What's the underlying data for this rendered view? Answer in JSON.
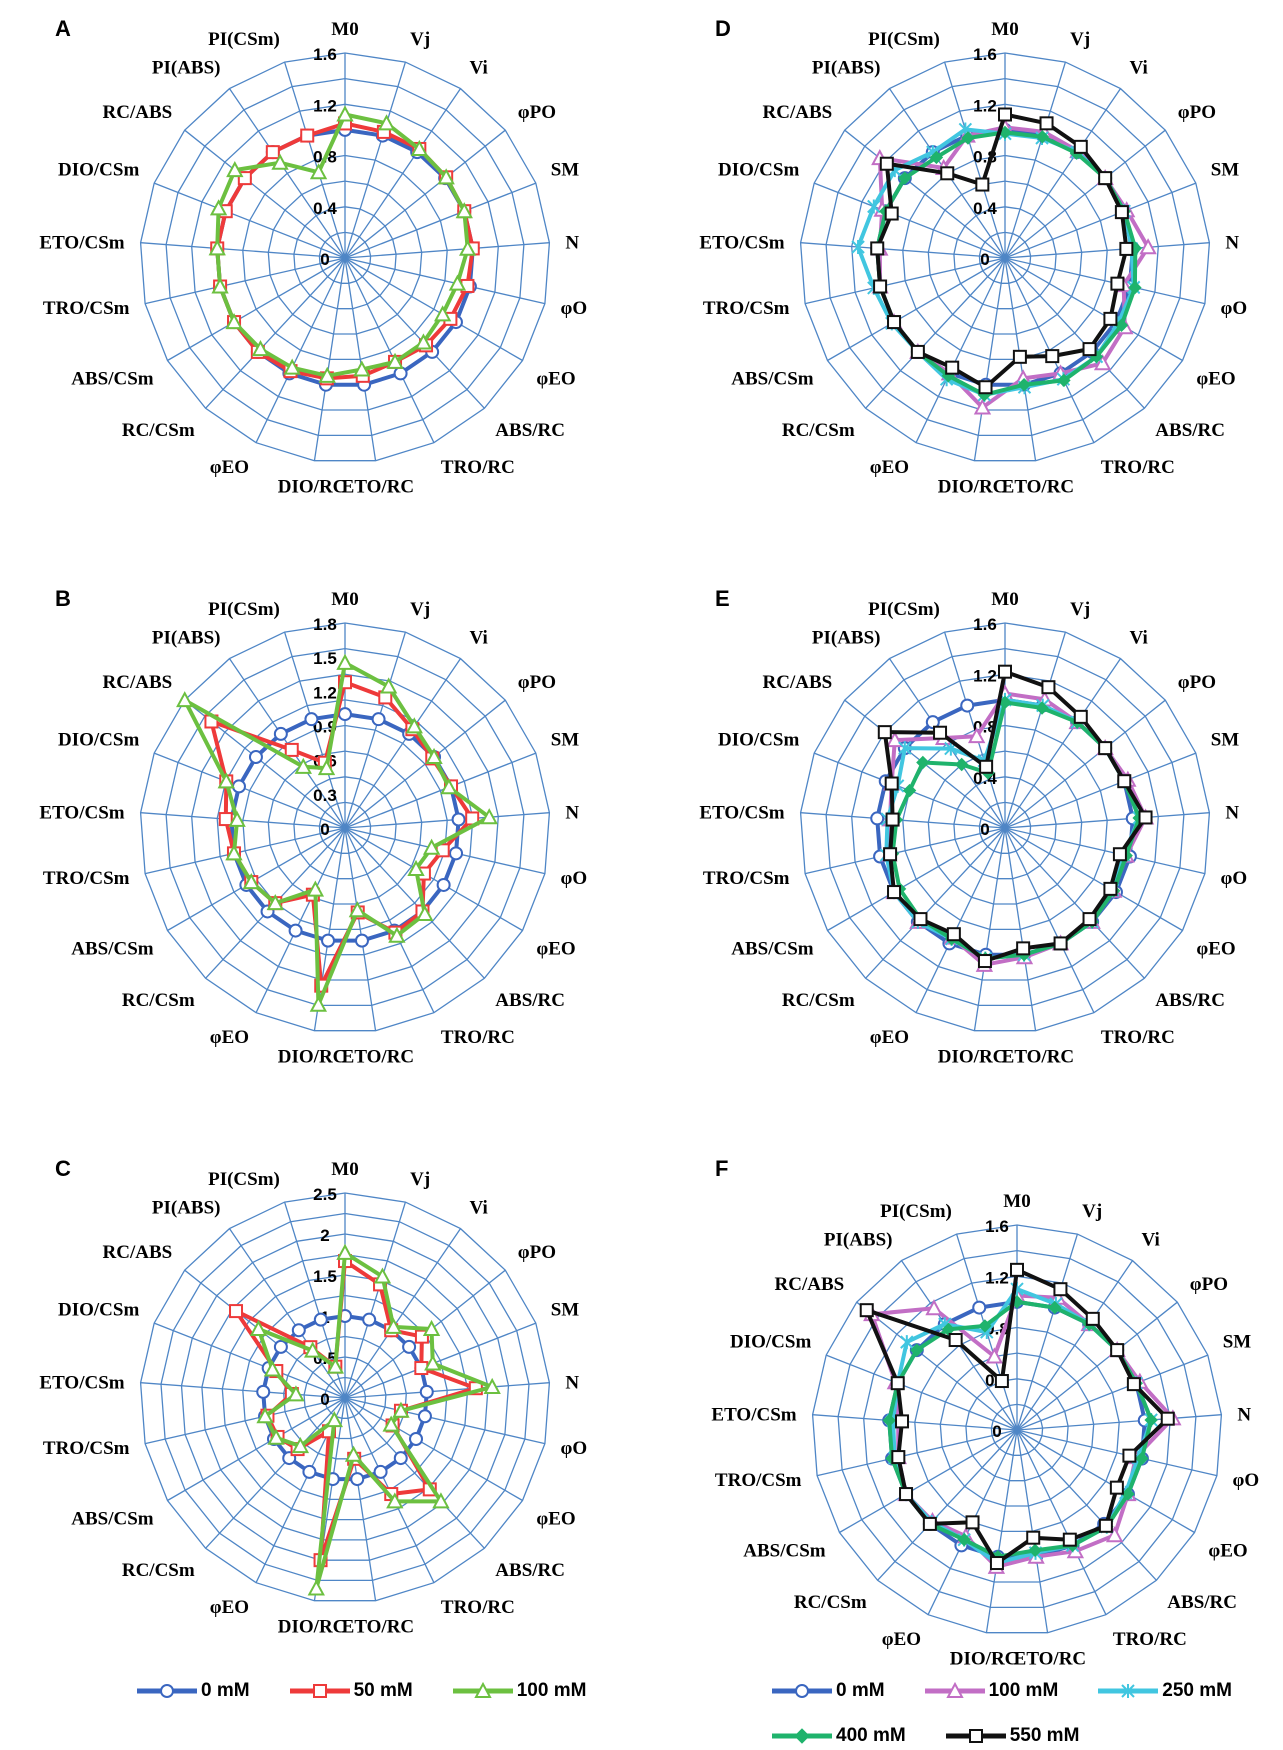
{
  "figure": {
    "panel_letters": [
      "A",
      "B",
      "C",
      "D",
      "E",
      "F"
    ]
  },
  "chart_data": [
    {
      "type": "radar",
      "panel": "A",
      "axes": [
        "M0",
        "Vj",
        "Vi",
        "φPO",
        "SM",
        "N",
        "φO",
        "φEO",
        "ABS/RC",
        "TRO/RC",
        "ETO/RC",
        "DIO/RC",
        "φEO",
        "RC/CSm",
        "ABS/CSm",
        "TRO/CSm",
        "ETO/CSm",
        "DIO/CSm",
        "RC/ABS",
        "PI(ABS)",
        "PI(CSm)"
      ],
      "tick_labels": [
        "0",
        "0.4",
        "0.8",
        "1.2",
        "1.6"
      ],
      "rmax": 1.6,
      "rings": 8,
      "series": [
        {
          "name": "0 mM",
          "values": [
            1,
            1,
            1,
            1,
            1,
            1,
            1,
            1,
            1,
            1,
            1,
            1,
            1,
            1,
            1,
            1,
            1,
            1,
            1,
            1,
            1
          ]
        },
        {
          "name": "50 mM",
          "values": [
            1.05,
            1.03,
            1.03,
            1.01,
            1.0,
            1.0,
            0.98,
            0.95,
            0.93,
            0.9,
            0.93,
            0.95,
            0.98,
            1.0,
            1.0,
            1.0,
            1.0,
            1.0,
            1.0,
            1.0,
            1.0
          ]
        },
        {
          "name": "100 mM",
          "values": [
            1.12,
            1.1,
            1.03,
            1.01,
            1.0,
            0.96,
            0.9,
            0.88,
            0.9,
            0.9,
            0.88,
            0.93,
            0.95,
            0.97,
            1.0,
            1.0,
            1.0,
            1.06,
            1.1,
            0.9,
            0.7
          ]
        }
      ]
    },
    {
      "type": "radar",
      "panel": "B",
      "axes": [
        "M0",
        "Vj",
        "Vi",
        "φPO",
        "SM",
        "N",
        "φO",
        "φEO",
        "ABS/RC",
        "TRO/RC",
        "ETO/RC",
        "DIO/RC",
        "φEO",
        "RC/CSm",
        "ABS/CSm",
        "TRO/CSm",
        "ETO/CSm",
        "DIO/CSm",
        "RC/ABS",
        "PI(ABS)",
        "PI(CSm)"
      ],
      "tick_labels": [
        "0",
        "0.3",
        "0.6",
        "0.9",
        "1.2",
        "1.5",
        "1.8"
      ],
      "rmax": 1.8,
      "rings": 8,
      "series": [
        {
          "name": "0 mM",
          "values": [
            1,
            1,
            1,
            1,
            1,
            1,
            1,
            1,
            1,
            1,
            1,
            1,
            1,
            1,
            1,
            1,
            1,
            1,
            1,
            1,
            1
          ]
        },
        {
          "name": "50 mM",
          "values": [
            1.28,
            1.2,
            1.05,
            0.98,
            1.0,
            1.12,
            0.88,
            0.8,
            1.0,
            1.02,
            0.75,
            1.4,
            0.65,
            0.9,
            0.95,
            1.0,
            1.05,
            1.12,
            1.5,
            0.83,
            0.6
          ]
        },
        {
          "name": "100 mM",
          "values": [
            1.45,
            1.3,
            1.08,
            1.0,
            0.98,
            1.27,
            0.78,
            0.72,
            1.03,
            1.05,
            0.73,
            1.57,
            0.6,
            0.9,
            0.95,
            1.0,
            0.95,
            1.12,
            1.8,
            0.65,
            0.55
          ]
        }
      ]
    },
    {
      "type": "radar",
      "panel": "C",
      "axes": [
        "M0",
        "Vj",
        "Vi",
        "φPO",
        "SM",
        "N",
        "φO",
        "φEO",
        "ABS/RC",
        "TRO/RC",
        "ETO/RC",
        "DIO/RC",
        "φEO",
        "RC/CSm",
        "ABS/CSm",
        "TRO/CSm",
        "ETO/CSm",
        "DIO/CSm",
        "RC/ABS",
        "PI(ABS)",
        "PI(CSm)"
      ],
      "tick_labels": [
        "0",
        "0.5",
        "1",
        "1.5",
        "2",
        "2.5"
      ],
      "rmax": 2.5,
      "rings": 10,
      "series": [
        {
          "name": "0 mM",
          "values": [
            1,
            1,
            1,
            1,
            1,
            1,
            1,
            1,
            1,
            1,
            1,
            1,
            1,
            1,
            1,
            1,
            1,
            1,
            1,
            1,
            1
          ]
        },
        {
          "name": "50 mM",
          "values": [
            1.67,
            1.45,
            1.0,
            1.2,
            1.0,
            1.6,
            0.7,
            0.67,
            1.52,
            1.3,
            0.75,
            2.0,
            0.45,
            0.85,
            0.95,
            0.97,
            0.65,
            0.9,
            1.7,
            0.75,
            0.4
          ]
        },
        {
          "name": "100 mM",
          "values": [
            1.77,
            1.55,
            1.05,
            1.35,
            1.15,
            1.8,
            0.7,
            0.65,
            1.72,
            1.4,
            0.7,
            2.35,
            0.3,
            0.8,
            0.97,
            1.0,
            0.6,
            0.95,
            1.35,
            0.7,
            0.4
          ]
        }
      ]
    },
    {
      "type": "radar",
      "panel": "D",
      "axes": [
        "M0",
        "Vj",
        "Vi",
        "φPO",
        "SM",
        "N",
        "φO",
        "φEO",
        "ABS/RC",
        "TRO/RC",
        "ETO/RC",
        "DIO/RC",
        "φEO",
        "RC/CSm",
        "ABS/CSm",
        "TRO/CSm",
        "ETO/CSm",
        "DIO/CSm",
        "RC/ABS",
        "PI(ABS)",
        "PI(CSm)"
      ],
      "tick_labels": [
        "0",
        "0.4",
        "0.8",
        "1.2",
        "1.6"
      ],
      "rmax": 1.6,
      "rings": 8,
      "series": [
        {
          "name": "0 mM",
          "values": [
            1,
            1,
            1,
            1,
            1,
            1,
            1,
            1,
            1,
            1,
            1,
            1,
            1,
            1,
            1,
            1,
            1,
            1,
            1,
            1,
            1
          ]
        },
        {
          "name": "100 mM",
          "values": [
            1.02,
            1.03,
            1.01,
            1.0,
            1.02,
            1.12,
            0.95,
            1.08,
            1.12,
            1.0,
            0.95,
            1.18,
            1.0,
            1.0,
            1.0,
            1.0,
            0.98,
            1.03,
            1.25,
            0.85,
            1.0
          ]
        },
        {
          "name": "250 mM",
          "values": [
            0.97,
            0.98,
            1.0,
            1.0,
            1.0,
            0.99,
            1.03,
            1.02,
            1.05,
            1.05,
            1.02,
            1.08,
            1.05,
            1.0,
            1.02,
            1.05,
            1.15,
            1.1,
            1.1,
            1.0,
            1.05
          ]
        },
        {
          "name": "400 mM",
          "values": [
            0.98,
            0.99,
            0.99,
            1.0,
            1.0,
            1.02,
            1.04,
            1.05,
            1.05,
            1.06,
            1.0,
            1.08,
            1.02,
            1.0,
            1.0,
            1.0,
            1.0,
            1.0,
            1.0,
            0.95,
            0.98
          ]
        },
        {
          "name": "550 mM",
          "values": [
            1.12,
            1.1,
            1.05,
            1.0,
            0.98,
            0.95,
            0.9,
            0.95,
            0.97,
            0.85,
            0.78,
            1.02,
            0.95,
            1.0,
            1.0,
            1.0,
            1.0,
            0.95,
            1.18,
            0.8,
            0.6
          ]
        }
      ]
    },
    {
      "type": "radar",
      "panel": "E",
      "axes": [
        "M0",
        "Vj",
        "Vi",
        "φPO",
        "SM",
        "N",
        "φO",
        "φEO",
        "ABS/RC",
        "TRO/RC",
        "ETO/RC",
        "DIO/RC",
        "φEO",
        "RC/CSm",
        "ABS/CSm",
        "TRO/CSm",
        "ETO/CSm",
        "DIO/CSm",
        "RC/ABS",
        "PI(ABS)",
        "PI(CSm)"
      ],
      "tick_labels": [
        "0",
        "0.4",
        "0.8",
        "1.2",
        "1.6"
      ],
      "rmax": 1.6,
      "rings": 8,
      "series": [
        {
          "name": "0 mM",
          "values": [
            1,
            1,
            1,
            1,
            1,
            1,
            1,
            1,
            1,
            1,
            1,
            1,
            1,
            1,
            1,
            1,
            1,
            1,
            1,
            1,
            1
          ]
        },
        {
          "name": "100 mM",
          "values": [
            1.05,
            1.05,
            1.0,
            1.0,
            1.03,
            1.1,
            0.97,
            0.98,
            1.0,
            1.0,
            1.02,
            1.08,
            0.95,
            1.0,
            1.0,
            0.93,
            0.9,
            0.95,
            1.1,
            0.85,
            0.75
          ]
        },
        {
          "name": "250 mM",
          "values": [
            1.0,
            1.0,
            1.0,
            1.0,
            1.0,
            1.05,
            0.95,
            0.97,
            1.0,
            1.0,
            1.0,
            1.03,
            0.96,
            1.0,
            1.0,
            0.95,
            0.92,
            0.9,
            1.0,
            0.75,
            0.55
          ]
        },
        {
          "name": "400 mM",
          "values": [
            0.98,
            0.98,
            1.0,
            1.0,
            1.0,
            1.05,
            0.97,
            0.98,
            1.0,
            1.0,
            1.0,
            1.03,
            0.96,
            0.97,
            0.95,
            0.9,
            0.85,
            0.8,
            0.82,
            0.6,
            0.45
          ]
        },
        {
          "name": "550 mM",
          "values": [
            1.22,
            1.15,
            1.05,
            1.0,
            1.0,
            1.1,
            0.92,
            0.95,
            0.97,
            1.0,
            0.95,
            1.05,
            0.92,
            0.97,
            1.0,
            0.92,
            0.88,
            0.95,
            1.2,
            0.9,
            0.5
          ]
        }
      ]
    },
    {
      "type": "radar",
      "panel": "F",
      "axes": [
        "M0",
        "Vj",
        "Vi",
        "φPO",
        "SM",
        "N",
        "φO",
        "φEO",
        "ABS/RC",
        "TRO/RC",
        "ETO/RC",
        "DIO/RC",
        "φEO",
        "RC/CSm",
        "ABS/CSm",
        "TRO/CSm",
        "ETO/CSm",
        "DIO/CSm",
        "RC/ABS",
        "PI(ABS)",
        "PI(CSm)"
      ],
      "tick_labels": [
        "0",
        "0.4",
        "0.8",
        "1.2",
        "1.6"
      ],
      "rmax": 1.6,
      "rings": 8,
      "series": [
        {
          "name": "0 mM",
          "values": [
            1,
            1,
            1,
            1,
            1,
            1,
            1,
            1,
            1,
            1,
            1,
            1,
            1,
            1,
            1,
            1,
            1,
            1,
            1,
            1,
            1
          ]
        },
        {
          "name": "100 mM",
          "values": [
            1.05,
            1.08,
            1.0,
            1.0,
            1.03,
            1.22,
            0.95,
            1.0,
            1.12,
            1.05,
            1.0,
            1.08,
            0.92,
            0.97,
            1.0,
            0.95,
            0.93,
            1.02,
            1.45,
            1.15,
            0.6
          ]
        },
        {
          "name": "250 mM",
          "values": [
            1.1,
            1.03,
            1.0,
            1.0,
            1.0,
            1.05,
            0.97,
            0.98,
            1.03,
            1.0,
            0.97,
            1.05,
            0.95,
            0.98,
            1.0,
            0.98,
            0.97,
            1.0,
            1.1,
            1.0,
            0.8
          ]
        },
        {
          "name": "400 mM",
          "values": [
            1.0,
            1.0,
            1.0,
            1.0,
            1.0,
            1.05,
            1.0,
            1.0,
            1.03,
            1.0,
            0.95,
            1.0,
            0.95,
            1.0,
            1.0,
            1.0,
            1.0,
            1.0,
            1.0,
            0.95,
            0.85
          ]
        },
        {
          "name": "550 mM",
          "values": [
            1.25,
            1.15,
            1.05,
            1.0,
            0.98,
            1.18,
            0.9,
            0.9,
            1.02,
            0.95,
            0.85,
            1.05,
            0.8,
            1.0,
            1.0,
            0.95,
            0.9,
            1.0,
            1.5,
            0.85,
            0.4
          ]
        }
      ]
    }
  ],
  "legend_left": {
    "items": [
      {
        "label": "0 mM",
        "color": "#3A66C0",
        "marker": "circle"
      },
      {
        "label": "50 mM",
        "color": "#EE3A3A",
        "marker": "square"
      },
      {
        "label": "100 mM",
        "color": "#6CC040",
        "marker": "triangle"
      }
    ]
  },
  "legend_right": {
    "items": [
      {
        "label": "0 mM",
        "color": "#3A66C0",
        "marker": "circle"
      },
      {
        "label": "100 mM",
        "color": "#C26EC5",
        "marker": "triangle"
      },
      {
        "label": "250 mM",
        "color": "#41C6E0",
        "marker": "star"
      },
      {
        "label": "400 mM",
        "color": "#1FB36C",
        "marker": "diamond"
      },
      {
        "label": "550 mM",
        "color": "#111111",
        "marker": "square"
      }
    ]
  },
  "colors": {
    "grid": "#4F86C6",
    "series_left": [
      "#3A66C0",
      "#EE3A3A",
      "#6CC040"
    ],
    "series_right": [
      "#3A66C0",
      "#C26EC5",
      "#41C6E0",
      "#1FB36C",
      "#111111"
    ]
  }
}
